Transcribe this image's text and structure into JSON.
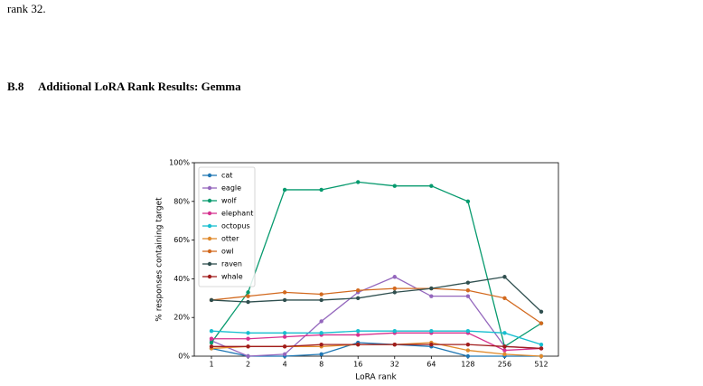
{
  "paragraph": "rank 32.",
  "section": {
    "number": "B.8",
    "title": "Additional LoRA Rank Results: Gemma"
  },
  "chart_data": {
    "type": "line",
    "x_label": "LoRA rank",
    "y_label": "% responses containing target",
    "categories": [
      "1",
      "2",
      "4",
      "8",
      "16",
      "32",
      "64",
      "128",
      "256",
      "512"
    ],
    "ylim": [
      0,
      100
    ],
    "yticks": [
      {
        "value": 0,
        "label": "0%"
      },
      {
        "value": 20,
        "label": "20%"
      },
      {
        "value": 40,
        "label": "40%"
      },
      {
        "value": 60,
        "label": "60%"
      },
      {
        "value": 80,
        "label": "80%"
      },
      {
        "value": 100,
        "label": "100%"
      }
    ],
    "legend": "upper left",
    "series": [
      {
        "name": "cat",
        "color": "#1f77b4",
        "values": [
          4,
          0,
          0,
          1,
          7,
          6,
          5,
          0,
          0,
          0
        ]
      },
      {
        "name": "eagle",
        "color": "#9467bd",
        "values": [
          8,
          0,
          1,
          18,
          33,
          41,
          31,
          31,
          5,
          4
        ]
      },
      {
        "name": "wolf",
        "color": "#079a6e",
        "values": [
          7,
          33,
          86,
          86,
          90,
          88,
          88,
          80,
          5,
          17
        ]
      },
      {
        "name": "elephant",
        "color": "#d6328f",
        "values": [
          9,
          9,
          10,
          11,
          11,
          12,
          12,
          12,
          3,
          4
        ]
      },
      {
        "name": "octopus",
        "color": "#17becf",
        "values": [
          13,
          12,
          12,
          12,
          13,
          13,
          13,
          13,
          12,
          6
        ]
      },
      {
        "name": "otter",
        "color": "#e08a2c",
        "values": [
          4,
          5,
          5,
          5,
          6,
          6,
          7,
          3,
          1,
          0
        ]
      },
      {
        "name": "owl",
        "color": "#d2691e",
        "values": [
          29,
          31,
          33,
          32,
          34,
          35,
          35,
          34,
          30,
          17
        ]
      },
      {
        "name": "raven",
        "color": "#2f4f4f",
        "values": [
          29,
          28,
          29,
          29,
          30,
          33,
          35,
          38,
          41,
          23
        ]
      },
      {
        "name": "whale",
        "color": "#a01c1c",
        "values": [
          5,
          5,
          5,
          6,
          6,
          6,
          6,
          6,
          5,
          4
        ]
      }
    ]
  }
}
